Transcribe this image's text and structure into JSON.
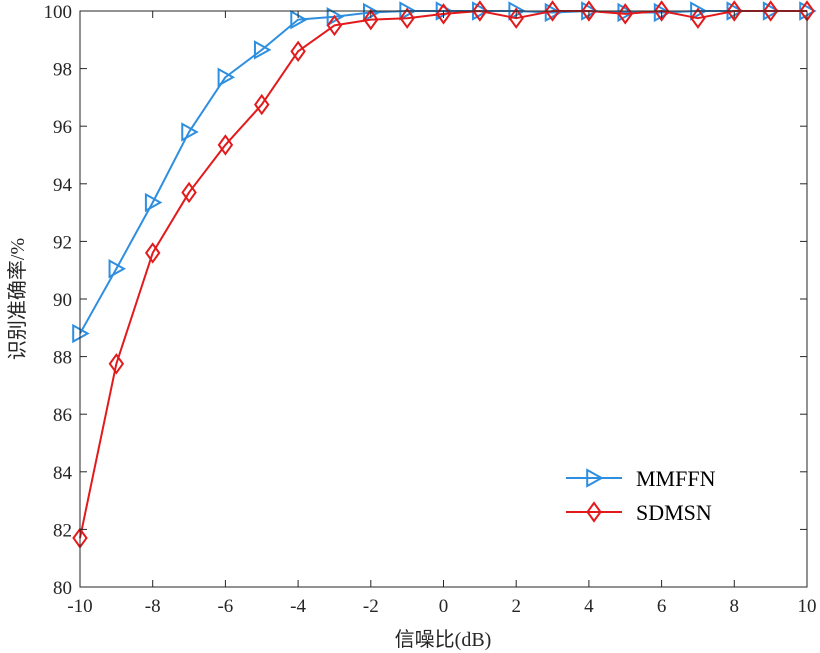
{
  "chart_data": {
    "type": "line",
    "xlabel": "信噪比(dB)",
    "ylabel": "识别准确率/%",
    "xlim": [
      -10,
      10
    ],
    "ylim": [
      80,
      100
    ],
    "xticks": [
      "-10",
      "-8",
      "-6",
      "-4",
      "-2",
      "0",
      "2",
      "4",
      "6",
      "8",
      "10"
    ],
    "yticks": [
      "80",
      "82",
      "84",
      "86",
      "88",
      "90",
      "92",
      "94",
      "96",
      "98",
      "100"
    ],
    "grid": false,
    "legend_position": "bottom-right",
    "x": [
      -10,
      -9,
      -8,
      -7,
      -6,
      -5,
      -4,
      -3,
      -2,
      -1,
      0,
      1,
      2,
      3,
      4,
      5,
      6,
      7,
      8,
      9,
      10
    ],
    "series": [
      {
        "name": "MMFFN",
        "color": "#2e8fe0",
        "marker": "triangle-right",
        "values": [
          88.8,
          91.05,
          93.35,
          95.8,
          97.7,
          98.65,
          99.7,
          99.8,
          99.95,
          100.0,
          100.0,
          100.0,
          100.0,
          99.95,
          100.0,
          99.95,
          99.95,
          100.0,
          100.0,
          100.0,
          100.0
        ]
      },
      {
        "name": "SDMSN",
        "color": "#e31a1c",
        "marker": "diamond",
        "values": [
          81.7,
          87.75,
          91.6,
          93.7,
          95.35,
          96.75,
          98.6,
          99.5,
          99.7,
          99.75,
          99.9,
          100.0,
          99.75,
          100.0,
          100.0,
          99.9,
          100.0,
          99.75,
          100.0,
          100.0,
          100.0
        ]
      }
    ]
  }
}
